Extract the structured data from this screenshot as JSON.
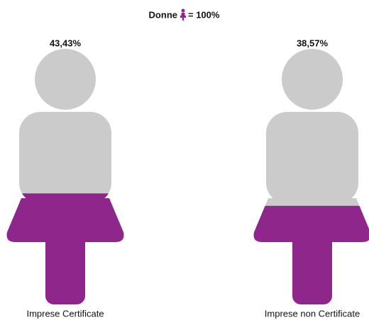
{
  "chart_data": {
    "type": "pictogram",
    "title": "Donne",
    "icon_value": 100,
    "icon_label": "= 100%",
    "categories": [
      "Imprese Certificate",
      "Imprese non Certificate"
    ],
    "values": [
      43.43,
      38.57
    ],
    "value_labels": [
      "43,43%",
      "38,57%"
    ],
    "color": "#8e268c",
    "empty_color": "#cbcbcb"
  }
}
